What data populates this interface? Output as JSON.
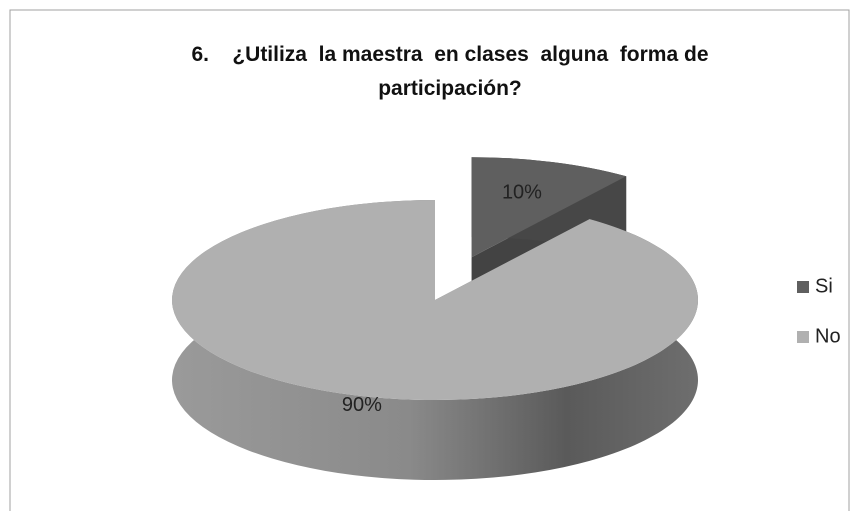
{
  "chart_data": {
    "type": "pie3d",
    "title": "6.    ¿Utiliza  la maestra  en clases  alguna  forma de participación?",
    "categories": [
      "Si",
      "No"
    ],
    "values": [
      10,
      90
    ],
    "value_labels": [
      "10%",
      "90%"
    ],
    "colors": [
      "#5f5f5f",
      "#b0b0b0"
    ],
    "legend": "right"
  }
}
